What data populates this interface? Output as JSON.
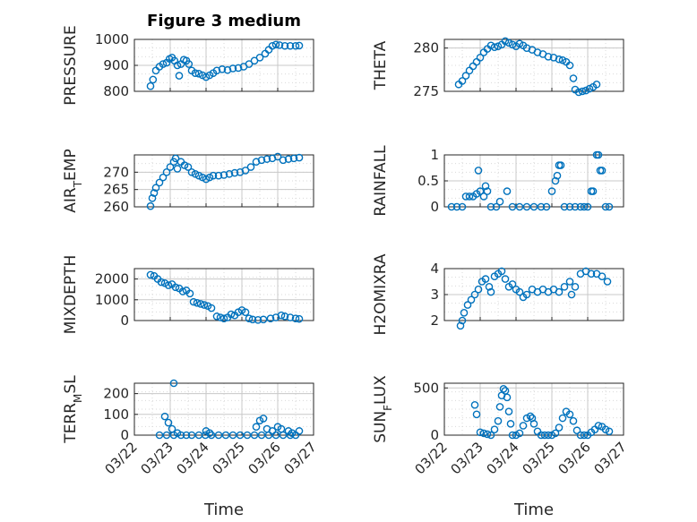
{
  "chart_data": [
    {
      "type": "scatter",
      "title": "Figure 3 medium",
      "ylabel": "PRESSURE",
      "xlabel": "",
      "xlim": [
        0,
        5
      ],
      "ylim": [
        800,
        1000
      ],
      "yticks": [
        800,
        900,
        1000
      ],
      "xticks": [],
      "grid": true,
      "points": [
        [
          0.45,
          820
        ],
        [
          0.52,
          845
        ],
        [
          0.6,
          880
        ],
        [
          0.7,
          895
        ],
        [
          0.8,
          905
        ],
        [
          0.9,
          910
        ],
        [
          0.98,
          925
        ],
        [
          1.05,
          930
        ],
        [
          1.12,
          918
        ],
        [
          1.2,
          900
        ],
        [
          1.25,
          860
        ],
        [
          1.3,
          905
        ],
        [
          1.38,
          922
        ],
        [
          1.45,
          918
        ],
        [
          1.52,
          905
        ],
        [
          1.6,
          880
        ],
        [
          1.7,
          870
        ],
        [
          1.8,
          868
        ],
        [
          1.9,
          862
        ],
        [
          2.0,
          855
        ],
        [
          2.1,
          862
        ],
        [
          2.2,
          870
        ],
        [
          2.3,
          880
        ],
        [
          2.45,
          885
        ],
        [
          2.6,
          882
        ],
        [
          2.75,
          888
        ],
        [
          2.9,
          890
        ],
        [
          3.05,
          895
        ],
        [
          3.2,
          905
        ],
        [
          3.35,
          918
        ],
        [
          3.5,
          930
        ],
        [
          3.65,
          945
        ],
        [
          3.75,
          960
        ],
        [
          3.85,
          975
        ],
        [
          3.95,
          980
        ],
        [
          4.05,
          978
        ],
        [
          4.2,
          975
        ],
        [
          4.35,
          975
        ],
        [
          4.5,
          975
        ],
        [
          4.6,
          976
        ]
      ]
    },
    {
      "type": "scatter",
      "title": "",
      "ylabel": "THETA",
      "xlabel": "",
      "xlim": [
        0,
        5
      ],
      "ylim": [
        275,
        281
      ],
      "yticks": [
        275,
        280
      ],
      "xticks": [],
      "grid": true,
      "points": [
        [
          0.4,
          275.8
        ],
        [
          0.5,
          276.2
        ],
        [
          0.6,
          276.8
        ],
        [
          0.7,
          277.4
        ],
        [
          0.8,
          277.9
        ],
        [
          0.9,
          278.4
        ],
        [
          1.0,
          278.9
        ],
        [
          1.1,
          279.5
        ],
        [
          1.2,
          279.9
        ],
        [
          1.3,
          280.3
        ],
        [
          1.4,
          280.1
        ],
        [
          1.5,
          280.2
        ],
        [
          1.6,
          280.4
        ],
        [
          1.7,
          280.8
        ],
        [
          1.8,
          280.6
        ],
        [
          1.9,
          280.4
        ],
        [
          2.0,
          280.2
        ],
        [
          2.1,
          280.5
        ],
        [
          2.2,
          280.3
        ],
        [
          2.3,
          280.0
        ],
        [
          2.45,
          279.8
        ],
        [
          2.6,
          279.5
        ],
        [
          2.75,
          279.3
        ],
        [
          2.9,
          279.0
        ],
        [
          3.05,
          278.9
        ],
        [
          3.2,
          278.7
        ],
        [
          3.3,
          278.6
        ],
        [
          3.4,
          278.4
        ],
        [
          3.5,
          278.0
        ],
        [
          3.6,
          276.5
        ],
        [
          3.65,
          275.2
        ],
        [
          3.75,
          274.9
        ],
        [
          3.85,
          275.0
        ],
        [
          3.95,
          275.1
        ],
        [
          4.05,
          275.3
        ],
        [
          4.15,
          275.5
        ],
        [
          4.25,
          275.8
        ]
      ]
    },
    {
      "type": "scatter",
      "title": "",
      "ylabel": "AIR_TEMP",
      "xlabel": "",
      "xlim": [
        0,
        5
      ],
      "ylim": [
        260,
        275
      ],
      "yticks": [
        260,
        265,
        270
      ],
      "xticks": [],
      "grid": true,
      "points": [
        [
          0.45,
          260.2
        ],
        [
          0.5,
          262.5
        ],
        [
          0.55,
          264.0
        ],
        [
          0.6,
          265.5
        ],
        [
          0.7,
          267.0
        ],
        [
          0.8,
          268.5
        ],
        [
          0.9,
          270.0
        ],
        [
          1.0,
          271.5
        ],
        [
          1.1,
          273.0
        ],
        [
          1.15,
          274.0
        ],
        [
          1.2,
          271.0
        ],
        [
          1.3,
          273.0
        ],
        [
          1.4,
          272.0
        ],
        [
          1.5,
          271.5
        ],
        [
          1.6,
          270.0
        ],
        [
          1.7,
          269.5
        ],
        [
          1.8,
          269.0
        ],
        [
          1.9,
          268.5
        ],
        [
          2.0,
          268.0
        ],
        [
          2.1,
          268.5
        ],
        [
          2.2,
          269.0
        ],
        [
          2.35,
          269.0
        ],
        [
          2.5,
          269.2
        ],
        [
          2.65,
          269.5
        ],
        [
          2.8,
          269.8
        ],
        [
          2.95,
          270.0
        ],
        [
          3.1,
          270.5
        ],
        [
          3.25,
          271.5
        ],
        [
          3.4,
          273.0
        ],
        [
          3.55,
          273.5
        ],
        [
          3.7,
          273.8
        ],
        [
          3.85,
          274.0
        ],
        [
          4.0,
          274.5
        ],
        [
          4.15,
          273.5
        ],
        [
          4.3,
          273.8
        ],
        [
          4.45,
          274.0
        ],
        [
          4.6,
          274.2
        ]
      ]
    },
    {
      "type": "scatter",
      "title": "",
      "ylabel": "RAINFALL",
      "xlabel": "",
      "xlim": [
        0,
        5
      ],
      "ylim": [
        0,
        1
      ],
      "yticks": [
        0,
        0.5,
        1
      ],
      "xticks": [],
      "grid": true,
      "points": [
        [
          0.2,
          0
        ],
        [
          0.35,
          0
        ],
        [
          0.5,
          0
        ],
        [
          0.6,
          0.2
        ],
        [
          0.7,
          0.2
        ],
        [
          0.8,
          0.2
        ],
        [
          0.9,
          0.25
        ],
        [
          0.95,
          0.7
        ],
        [
          1.0,
          0.3
        ],
        [
          1.1,
          0.2
        ],
        [
          1.15,
          0.4
        ],
        [
          1.2,
          0.3
        ],
        [
          1.3,
          0
        ],
        [
          1.45,
          0
        ],
        [
          1.55,
          0.1
        ],
        [
          1.75,
          0.3
        ],
        [
          1.9,
          0
        ],
        [
          2.1,
          0
        ],
        [
          2.3,
          0
        ],
        [
          2.5,
          0
        ],
        [
          2.7,
          0
        ],
        [
          2.85,
          0
        ],
        [
          3.0,
          0.3
        ],
        [
          3.1,
          0.5
        ],
        [
          3.15,
          0.6
        ],
        [
          3.2,
          0.8
        ],
        [
          3.25,
          0.8
        ],
        [
          3.35,
          0
        ],
        [
          3.5,
          0
        ],
        [
          3.65,
          0
        ],
        [
          3.8,
          0
        ],
        [
          3.9,
          0
        ],
        [
          4.0,
          0
        ],
        [
          4.1,
          0.3
        ],
        [
          4.15,
          0.3
        ],
        [
          4.25,
          1.0
        ],
        [
          4.3,
          1.0
        ],
        [
          4.35,
          0.7
        ],
        [
          4.4,
          0.7
        ],
        [
          4.5,
          0
        ],
        [
          4.6,
          0
        ]
      ]
    },
    {
      "type": "scatter",
      "title": "",
      "ylabel": "MIXDEPTH",
      "xlabel": "",
      "xlim": [
        0,
        5
      ],
      "ylim": [
        0,
        2500
      ],
      "yticks": [
        0,
        1000,
        2000
      ],
      "xticks": [],
      "grid": true,
      "points": [
        [
          0.45,
          2200
        ],
        [
          0.55,
          2150
        ],
        [
          0.65,
          2000
        ],
        [
          0.75,
          1850
        ],
        [
          0.85,
          1800
        ],
        [
          0.95,
          1700
        ],
        [
          1.05,
          1750
        ],
        [
          1.15,
          1600
        ],
        [
          1.25,
          1550
        ],
        [
          1.35,
          1400
        ],
        [
          1.45,
          1450
        ],
        [
          1.55,
          1300
        ],
        [
          1.65,
          900
        ],
        [
          1.75,
          850
        ],
        [
          1.85,
          800
        ],
        [
          1.95,
          750
        ],
        [
          2.05,
          700
        ],
        [
          2.15,
          600
        ],
        [
          2.3,
          200
        ],
        [
          2.4,
          150
        ],
        [
          2.5,
          100
        ],
        [
          2.6,
          150
        ],
        [
          2.7,
          300
        ],
        [
          2.8,
          250
        ],
        [
          2.9,
          400
        ],
        [
          3.0,
          500
        ],
        [
          3.1,
          400
        ],
        [
          3.2,
          100
        ],
        [
          3.3,
          50
        ],
        [
          3.45,
          30
        ],
        [
          3.6,
          50
        ],
        [
          3.8,
          100
        ],
        [
          3.95,
          150
        ],
        [
          4.1,
          250
        ],
        [
          4.2,
          200
        ],
        [
          4.35,
          150
        ],
        [
          4.5,
          100
        ],
        [
          4.6,
          80
        ]
      ]
    },
    {
      "type": "scatter",
      "title": "",
      "ylabel": "H2OMIXRA",
      "xlabel": "",
      "xlim": [
        0,
        5
      ],
      "ylim": [
        2,
        4
      ],
      "yticks": [
        2,
        3,
        4
      ],
      "xticks": [],
      "grid": true,
      "points": [
        [
          0.45,
          1.8
        ],
        [
          0.5,
          2.0
        ],
        [
          0.55,
          2.3
        ],
        [
          0.65,
          2.6
        ],
        [
          0.75,
          2.8
        ],
        [
          0.85,
          3.0
        ],
        [
          0.95,
          3.2
        ],
        [
          1.05,
          3.5
        ],
        [
          1.15,
          3.6
        ],
        [
          1.25,
          3.3
        ],
        [
          1.3,
          3.1
        ],
        [
          1.4,
          3.7
        ],
        [
          1.5,
          3.8
        ],
        [
          1.6,
          3.9
        ],
        [
          1.7,
          3.6
        ],
        [
          1.8,
          3.3
        ],
        [
          1.9,
          3.4
        ],
        [
          2.0,
          3.2
        ],
        [
          2.1,
          3.1
        ],
        [
          2.2,
          2.9
        ],
        [
          2.3,
          3.0
        ],
        [
          2.45,
          3.2
        ],
        [
          2.6,
          3.1
        ],
        [
          2.75,
          3.2
        ],
        [
          2.9,
          3.1
        ],
        [
          3.05,
          3.2
        ],
        [
          3.2,
          3.1
        ],
        [
          3.35,
          3.3
        ],
        [
          3.5,
          3.5
        ],
        [
          3.55,
          3.0
        ],
        [
          3.65,
          3.3
        ],
        [
          3.8,
          3.8
        ],
        [
          3.95,
          3.9
        ],
        [
          4.1,
          3.8
        ],
        [
          4.25,
          3.8
        ],
        [
          4.4,
          3.7
        ],
        [
          4.55,
          3.5
        ]
      ]
    },
    {
      "type": "scatter",
      "title": "",
      "ylabel": "TERR_MSL",
      "xlabel": "Time",
      "xlim": [
        0,
        5
      ],
      "ylim": [
        0,
        250
      ],
      "yticks": [
        0,
        100,
        200
      ],
      "xticks": [
        "03/22",
        "03/23",
        "03/24",
        "03/25",
        "03/26",
        "03/27"
      ],
      "grid": true,
      "points": [
        [
          0.7,
          0
        ],
        [
          0.9,
          0
        ],
        [
          1.1,
          0
        ],
        [
          1.3,
          0
        ],
        [
          1.45,
          0
        ],
        [
          1.6,
          0
        ],
        [
          1.8,
          0
        ],
        [
          1.98,
          0
        ],
        [
          2.15,
          0
        ],
        [
          2.35,
          0
        ],
        [
          2.55,
          0
        ],
        [
          2.75,
          0
        ],
        [
          2.95,
          0
        ],
        [
          3.15,
          0
        ],
        [
          3.35,
          0
        ],
        [
          3.55,
          0
        ],
        [
          3.75,
          0
        ],
        [
          3.95,
          0
        ],
        [
          4.15,
          0
        ],
        [
          4.35,
          0
        ],
        [
          4.5,
          0
        ],
        [
          1.1,
          250
        ],
        [
          0.85,
          90
        ],
        [
          0.95,
          60
        ],
        [
          1.05,
          30
        ],
        [
          1.2,
          10
        ],
        [
          2.0,
          20
        ],
        [
          2.1,
          10
        ],
        [
          3.4,
          40
        ],
        [
          3.5,
          70
        ],
        [
          3.6,
          80
        ],
        [
          3.7,
          30
        ],
        [
          3.85,
          20
        ],
        [
          4.0,
          40
        ],
        [
          4.1,
          30
        ],
        [
          4.3,
          20
        ],
        [
          4.4,
          10
        ],
        [
          4.6,
          20
        ]
      ]
    },
    {
      "type": "scatter",
      "title": "",
      "ylabel": "SUN_FLUX",
      "xlabel": "Time",
      "xlim": [
        0,
        5
      ],
      "ylim": [
        0,
        550
      ],
      "yticks": [
        0,
        500
      ],
      "xticks": [
        "03/22",
        "03/23",
        "03/24",
        "03/25",
        "03/26",
        "03/27"
      ],
      "grid": true,
      "points": [
        [
          0.85,
          320
        ],
        [
          0.9,
          220
        ],
        [
          1.0,
          30
        ],
        [
          1.1,
          20
        ],
        [
          1.2,
          10
        ],
        [
          1.3,
          0
        ],
        [
          1.4,
          60
        ],
        [
          1.5,
          150
        ],
        [
          1.55,
          300
        ],
        [
          1.6,
          420
        ],
        [
          1.65,
          490
        ],
        [
          1.7,
          470
        ],
        [
          1.75,
          400
        ],
        [
          1.8,
          250
        ],
        [
          1.85,
          120
        ],
        [
          1.9,
          0
        ],
        [
          2.0,
          0
        ],
        [
          2.1,
          20
        ],
        [
          2.2,
          100
        ],
        [
          2.3,
          180
        ],
        [
          2.4,
          200
        ],
        [
          2.45,
          180
        ],
        [
          2.5,
          120
        ],
        [
          2.6,
          40
        ],
        [
          2.7,
          0
        ],
        [
          2.8,
          0
        ],
        [
          2.9,
          0
        ],
        [
          3.0,
          0
        ],
        [
          3.1,
          20
        ],
        [
          3.2,
          80
        ],
        [
          3.3,
          180
        ],
        [
          3.4,
          250
        ],
        [
          3.5,
          220
        ],
        [
          3.6,
          150
        ],
        [
          3.7,
          50
        ],
        [
          3.8,
          0
        ],
        [
          3.9,
          0
        ],
        [
          4.0,
          0
        ],
        [
          4.1,
          30
        ],
        [
          4.2,
          60
        ],
        [
          4.3,
          100
        ],
        [
          4.4,
          90
        ],
        [
          4.5,
          60
        ],
        [
          4.6,
          40
        ]
      ]
    }
  ],
  "colors": {
    "marker": "#0072BD",
    "grid": "#d9d9d9",
    "axis": "#262626"
  }
}
